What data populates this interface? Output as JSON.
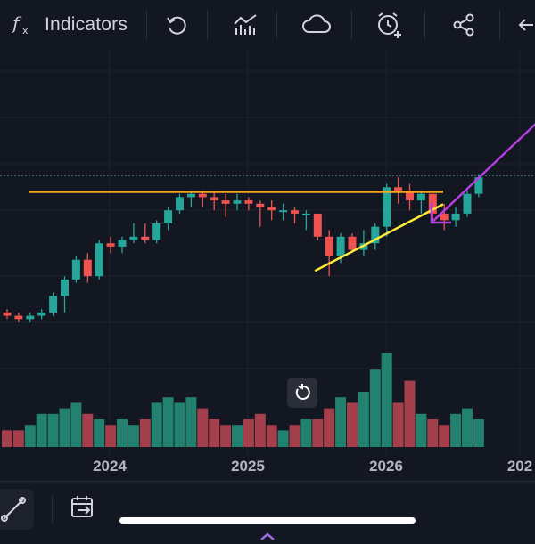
{
  "toolbar": {
    "indicators_label": "Indicators",
    "icons": [
      "function-icon",
      "undo-icon",
      "compare-icon",
      "cloud-icon",
      "alert-add-icon",
      "share-icon",
      "back-icon"
    ]
  },
  "colors": {
    "background": "#131722",
    "bull": "#26a69a",
    "bear": "#ef5350",
    "bull_volume": "#23816f",
    "bear_volume": "#a3404c",
    "resistance": "#f5a623",
    "support": "#ffeb3b",
    "arrow": "#b43fe0",
    "price_line": "#4f8c8c"
  },
  "chart_data": {
    "type": "candlestick",
    "x_axis_labels": [
      "2024",
      "2025",
      "2026",
      "202"
    ],
    "candles": [
      {
        "o": 3,
        "h": 4,
        "l": 1,
        "c": 2
      },
      {
        "o": 2,
        "h": 3,
        "l": 0,
        "c": 1
      },
      {
        "o": 1,
        "h": 3,
        "l": 0,
        "c": 2
      },
      {
        "o": 2,
        "h": 4,
        "l": 1,
        "c": 3
      },
      {
        "o": 3,
        "h": 9,
        "l": 2,
        "c": 8
      },
      {
        "o": 8,
        "h": 14,
        "l": 3,
        "c": 13
      },
      {
        "o": 13,
        "h": 20,
        "l": 12,
        "c": 19
      },
      {
        "o": 19,
        "h": 21,
        "l": 12,
        "c": 14
      },
      {
        "o": 14,
        "h": 25,
        "l": 13,
        "c": 24
      },
      {
        "o": 24,
        "h": 26,
        "l": 21,
        "c": 23
      },
      {
        "o": 23,
        "h": 26,
        "l": 21,
        "c": 25
      },
      {
        "o": 25,
        "h": 30,
        "l": 24,
        "c": 26
      },
      {
        "o": 26,
        "h": 30,
        "l": 24,
        "c": 25
      },
      {
        "o": 25,
        "h": 31,
        "l": 24,
        "c": 30
      },
      {
        "o": 30,
        "h": 35,
        "l": 28,
        "c": 34
      },
      {
        "o": 34,
        "h": 39,
        "l": 33,
        "c": 38
      },
      {
        "o": 38,
        "h": 40,
        "l": 35,
        "c": 39
      },
      {
        "o": 39,
        "h": 40,
        "l": 35,
        "c": 38
      },
      {
        "o": 38,
        "h": 40,
        "l": 34,
        "c": 37
      },
      {
        "o": 37,
        "h": 39,
        "l": 32,
        "c": 36
      },
      {
        "o": 36,
        "h": 39,
        "l": 34,
        "c": 37
      },
      {
        "o": 37,
        "h": 38,
        "l": 34,
        "c": 36
      },
      {
        "o": 36,
        "h": 37,
        "l": 29,
        "c": 35
      },
      {
        "o": 35,
        "h": 37,
        "l": 31,
        "c": 34
      },
      {
        "o": 34,
        "h": 36,
        "l": 31,
        "c": 34
      },
      {
        "o": 34,
        "h": 35,
        "l": 30,
        "c": 33
      },
      {
        "o": 33,
        "h": 34,
        "l": 28,
        "c": 33
      },
      {
        "o": 33,
        "h": 33,
        "l": 25,
        "c": 26
      },
      {
        "o": 26,
        "h": 28,
        "l": 14,
        "c": 20
      },
      {
        "o": 20,
        "h": 27,
        "l": 18,
        "c": 26
      },
      {
        "o": 26,
        "h": 27,
        "l": 21,
        "c": 22
      },
      {
        "o": 22,
        "h": 28,
        "l": 20,
        "c": 24
      },
      {
        "o": 24,
        "h": 30,
        "l": 22,
        "c": 29
      },
      {
        "o": 29,
        "h": 42,
        "l": 26,
        "c": 41
      },
      {
        "o": 41,
        "h": 44,
        "l": 36,
        "c": 40
      },
      {
        "o": 40,
        "h": 42,
        "l": 34,
        "c": 37
      },
      {
        "o": 37,
        "h": 40,
        "l": 33,
        "c": 39
      },
      {
        "o": 39,
        "h": 39,
        "l": 31,
        "c": 33
      },
      {
        "o": 33,
        "h": 36,
        "l": 28,
        "c": 31
      },
      {
        "o": 31,
        "h": 35,
        "l": 29,
        "c": 33
      },
      {
        "o": 33,
        "h": 40,
        "l": 32,
        "c": 39
      },
      {
        "o": 39,
        "h": 45,
        "l": 38,
        "c": 44
      }
    ],
    "volume": [
      3,
      3,
      4,
      6,
      6,
      7,
      8,
      6,
      5,
      4,
      5,
      4,
      5,
      8,
      9,
      8,
      9,
      7,
      5,
      4,
      4,
      5,
      6,
      4,
      3,
      4,
      5,
      5,
      7,
      9,
      8,
      10,
      14,
      17,
      8,
      12,
      6,
      5,
      4,
      6,
      7,
      5
    ],
    "resistance_level": 40,
    "grid": true
  }
}
